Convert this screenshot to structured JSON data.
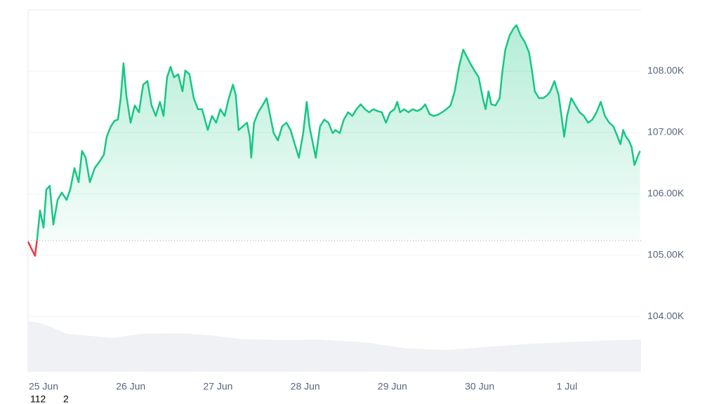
{
  "chart_data": {
    "type": "line",
    "x": [
      -0.177,
      -0.137,
      -0.097,
      -0.072,
      -0.04,
      0,
      0.032,
      0.072,
      0.113,
      0.161,
      0.209,
      0.265,
      0.306,
      0.354,
      0.402,
      0.442,
      0.483,
      0.531,
      0.587,
      0.644,
      0.692,
      0.724,
      0.772,
      0.813,
      0.853,
      0.885,
      0.917,
      0.949,
      0.998,
      1.046,
      1.094,
      1.142,
      1.191,
      1.239,
      1.287,
      1.335,
      1.376,
      1.416,
      1.456,
      1.496,
      1.545,
      1.593,
      1.625,
      1.673,
      1.722,
      1.77,
      1.818,
      1.883,
      1.931,
      1.979,
      2.027,
      2.076,
      2.124,
      2.172,
      2.204,
      2.236,
      2.285,
      2.333,
      2.365,
      2.381,
      2.413,
      2.462,
      2.51,
      2.558,
      2.607,
      2.639,
      2.687,
      2.735,
      2.784,
      2.832,
      2.88,
      2.928,
      2.977,
      3.017,
      3.049,
      3.089,
      3.121,
      3.17,
      3.218,
      3.266,
      3.315,
      3.347,
      3.395,
      3.443,
      3.492,
      3.54,
      3.588,
      3.636,
      3.685,
      3.733,
      3.781,
      3.829,
      3.878,
      3.926,
      3.974,
      4.023,
      4.055,
      4.087,
      4.135,
      4.183,
      4.232,
      4.28,
      4.328,
      4.376,
      4.425,
      4.473,
      4.521,
      4.569,
      4.618,
      4.666,
      4.714,
      4.763,
      4.811,
      4.851,
      4.891,
      4.94,
      4.988,
      5.036,
      5.068,
      5.101,
      5.133,
      5.181,
      5.229,
      5.261,
      5.294,
      5.342,
      5.39,
      5.422,
      5.47,
      5.519,
      5.567,
      5.599,
      5.632,
      5.68,
      5.728,
      5.776,
      5.809,
      5.857,
      5.905,
      5.937,
      5.969,
      6.002,
      6.05,
      6.098,
      6.146,
      6.195,
      6.243,
      6.291,
      6.34,
      6.388,
      6.436,
      6.484,
      6.533,
      6.581,
      6.613,
      6.645,
      6.677,
      6.71,
      6.742,
      6.774,
      6.806,
      6.838
    ],
    "values": [
      105220,
      105100,
      104990,
      105275,
      105730,
      105450,
      106070,
      106130,
      105500,
      105900,
      106020,
      105900,
      106070,
      106420,
      106190,
      106700,
      106590,
      106190,
      106420,
      106530,
      106640,
      106930,
      107100,
      107190,
      107210,
      107560,
      108130,
      107610,
      107160,
      107440,
      107330,
      107780,
      107840,
      107440,
      107270,
      107500,
      107270,
      107900,
      108070,
      107900,
      107950,
      107670,
      108010,
      107950,
      107560,
      107380,
      107380,
      107040,
      107270,
      107160,
      107380,
      107270,
      107560,
      107780,
      107610,
      107040,
      107100,
      107160,
      106930,
      106590,
      107160,
      107330,
      107440,
      107560,
      107210,
      106990,
      106870,
      107100,
      107160,
      107040,
      106810,
      106590,
      106990,
      107500,
      107100,
      106810,
      106590,
      107100,
      107210,
      107160,
      106990,
      107040,
      106990,
      107210,
      107330,
      107270,
      107380,
      107460,
      107380,
      107330,
      107380,
      107350,
      107330,
      107160,
      107330,
      107380,
      107500,
      107330,
      107380,
      107330,
      107380,
      107350,
      107380,
      107460,
      107300,
      107270,
      107290,
      107330,
      107380,
      107440,
      107670,
      108070,
      108350,
      108240,
      108130,
      108010,
      107900,
      107560,
      107380,
      107670,
      107460,
      107440,
      107560,
      108010,
      108350,
      108580,
      108700,
      108750,
      108580,
      108470,
      108300,
      108010,
      107670,
      107560,
      107560,
      107610,
      107670,
      107840,
      107610,
      107270,
      106930,
      107270,
      107560,
      107440,
      107330,
      107270,
      107160,
      107210,
      107330,
      107500,
      107270,
      107160,
      107100,
      106930,
      106810,
      107040,
      106930,
      106870,
      106760,
      106470,
      106590,
      106700
    ],
    "color": "#16c784",
    "negative_color": "#ea3943",
    "baseline": 105240,
    "xlim": [
      -0.177,
      6.85
    ],
    "xticks": [
      {
        "value": 0,
        "label": "25 Jun"
      },
      {
        "value": 1,
        "label": "26 Jun"
      },
      {
        "value": 2,
        "label": "27 Jun"
      },
      {
        "value": 3,
        "label": "28 Jun"
      },
      {
        "value": 4,
        "label": "29 Jun"
      },
      {
        "value": 5,
        "label": "30 Jun"
      },
      {
        "value": 6,
        "label": "1 Jul"
      }
    ],
    "ylim": [
      103100,
      109000
    ],
    "yticks": [
      {
        "value": 104000,
        "label": "104.00K"
      },
      {
        "value": 105000,
        "label": "105.00K"
      },
      {
        "value": 106000,
        "label": "106.00K"
      },
      {
        "value": 107000,
        "label": "107.00K"
      },
      {
        "value": 108000,
        "label": "108.00K"
      }
    ],
    "grid": true,
    "annotations": [
      "112",
      "2"
    ]
  }
}
